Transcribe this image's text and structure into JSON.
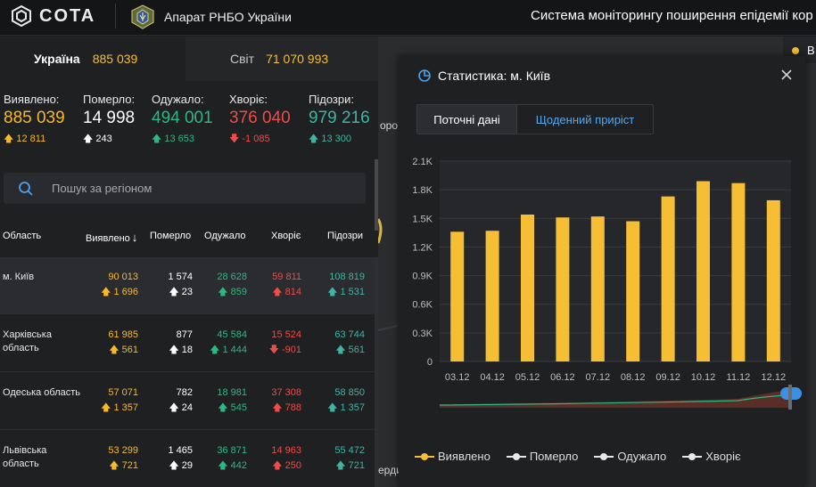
{
  "header": {
    "logo_text": "COTA",
    "org_name": "Апарат РНБО України",
    "title": "Система моніторингу поширення епідемії кор"
  },
  "tabs": [
    {
      "label": "Україна",
      "value": "885 039"
    },
    {
      "label": "Світ",
      "value": "71 070 993"
    }
  ],
  "summary": [
    {
      "label": "Виявлено:",
      "value": "885 039",
      "delta": "12 811",
      "dir": "up",
      "color": "#f7b928"
    },
    {
      "label": "Померло:",
      "value": "14 998",
      "delta": "243",
      "dir": "up",
      "color": "#ffffff"
    },
    {
      "label": "Одужало:",
      "value": "494 001",
      "delta": "13 653",
      "dir": "up",
      "color": "#2cb882"
    },
    {
      "label": "Хворіє:",
      "value": "376 040",
      "delta": "-1 085",
      "dir": "down",
      "color": "#ee4b4b"
    },
    {
      "label": "Підозри:",
      "value": "979 216",
      "delta": "13 300",
      "dir": "up",
      "color": "#3fb4a2"
    }
  ],
  "search": {
    "placeholder": "Пошук за регіоном"
  },
  "table": {
    "headers": [
      "Область",
      "Виявлено",
      "Померло",
      "Одужало",
      "Хворіє",
      "Підозри"
    ],
    "sort_arrow": "↓",
    "rows": [
      {
        "name": "м. Київ",
        "cells": [
          [
            "90 013",
            "1 696"
          ],
          [
            "1 574",
            "23"
          ],
          [
            "28 628",
            "859"
          ],
          [
            "59 811",
            "814"
          ],
          [
            "108 819",
            "1 531"
          ]
        ],
        "dirs": [
          "up",
          "up",
          "up",
          "up",
          "up"
        ]
      },
      {
        "name": "Харківська область",
        "cells": [
          [
            "61 985",
            "561"
          ],
          [
            "877",
            "18"
          ],
          [
            "45 584",
            "1 444"
          ],
          [
            "15 524",
            "-901"
          ],
          [
            "63 744",
            "561"
          ]
        ],
        "dirs": [
          "up",
          "up",
          "up",
          "down",
          "up"
        ]
      },
      {
        "name": "Одеська область",
        "cells": [
          [
            "57 071",
            "1 357"
          ],
          [
            "782",
            "24"
          ],
          [
            "18 981",
            "545"
          ],
          [
            "37 308",
            "788"
          ],
          [
            "58 850",
            "1 357"
          ]
        ],
        "dirs": [
          "up",
          "up",
          "up",
          "up",
          "up"
        ]
      },
      {
        "name": "Львівська область",
        "cells": [
          [
            "53 299",
            "721"
          ],
          [
            "1 465",
            "29"
          ],
          [
            "36 871",
            "442"
          ],
          [
            "14 963",
            "250"
          ],
          [
            "55 472",
            "721"
          ]
        ],
        "dirs": [
          "up",
          "up",
          "up",
          "up",
          "up"
        ]
      }
    ]
  },
  "map": {
    "labels": [
      "оро",
      "ерди"
    ],
    "chip_label": "В"
  },
  "panel": {
    "title": "Статистика: м. Київ",
    "seg_current": "Поточні дані",
    "seg_daily": "Щоденний приріст",
    "legend": [
      {
        "label": "Виявлено",
        "color": "#f5be34"
      },
      {
        "label": "Померло",
        "color": "#e8e8e8"
      },
      {
        "label": "Одужало",
        "color": "#e8e8e8"
      },
      {
        "label": "Хворіє",
        "color": "#e8e8e8"
      }
    ]
  },
  "chart_data": {
    "type": "bar",
    "categories": [
      "03.12",
      "04.12",
      "05.12",
      "06.12",
      "07.12",
      "08.12",
      "09.12",
      "10.12",
      "11.12",
      "12.12"
    ],
    "series": [
      {
        "name": "Виявлено",
        "values": [
          1360,
          1370,
          1540,
          1510,
          1520,
          1470,
          1730,
          1890,
          1870,
          1690
        ]
      }
    ],
    "yticks": [
      "0",
      "0.3K",
      "0.6K",
      "0.9K",
      "1.2K",
      "1.5K",
      "1.8K",
      "2.1K"
    ],
    "ylim": [
      0,
      2100
    ],
    "bar_color": "#f5be34",
    "grid": true
  }
}
